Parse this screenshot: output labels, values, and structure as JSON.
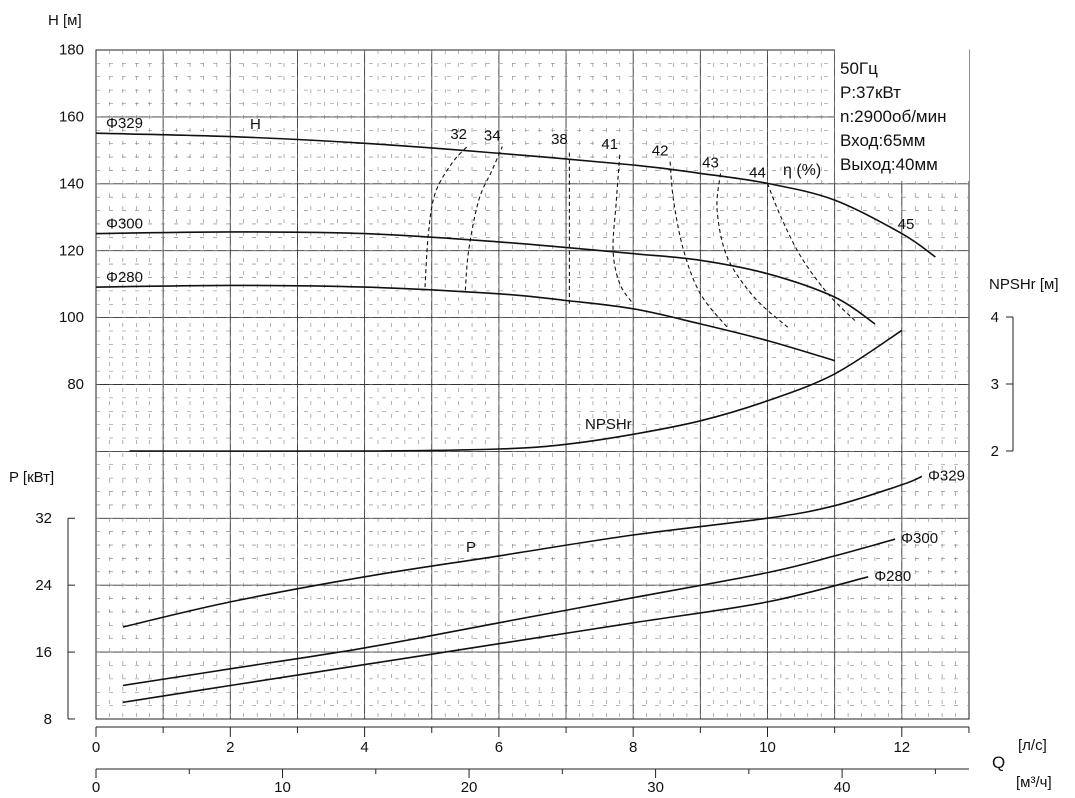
{
  "chart_data": {
    "type": "line",
    "info": [
      "50Гц",
      "P:37кВт",
      "n:2900об/мин",
      "Вход:65мм",
      "Выход:40мм"
    ],
    "head_axis": {
      "label": "H [м]",
      "ticks": [
        80,
        100,
        120,
        140,
        160,
        180
      ],
      "range": [
        60,
        180
      ]
    },
    "npsh_axis": {
      "label": "NPSHr [м]",
      "ticks": [
        2,
        3,
        4
      ],
      "range": [
        2,
        4
      ]
    },
    "power_axis": {
      "label": "P [кВт]",
      "ticks": [
        8,
        16,
        24,
        32
      ],
      "range": [
        8,
        40
      ]
    },
    "flow_axis_ls": {
      "unit": "[л/с]",
      "ticks": [
        0,
        2,
        4,
        6,
        8,
        10,
        12
      ],
      "range": [
        0,
        13
      ]
    },
    "flow_axis_m3h": {
      "unit": "[м³/ч]",
      "ticks": [
        0,
        10,
        20,
        30,
        40
      ],
      "range": [
        0,
        46.8
      ]
    },
    "flow_symbol": "Q",
    "head_curve_tag": "H",
    "npsh_curve_tag": "NPSHr",
    "power_curve_tag": "P",
    "efficiency_tag": "η (%)",
    "head_series": [
      {
        "name": "Φ329",
        "x": [
          0,
          2,
          4,
          6,
          8,
          9,
          10,
          11,
          12,
          12.5
        ],
        "y": [
          155,
          154,
          152,
          149,
          145.5,
          143,
          140,
          135,
          125,
          118
        ]
      },
      {
        "name": "Φ300",
        "x": [
          0,
          2,
          4,
          6,
          8,
          9,
          10,
          11,
          11.6
        ],
        "y": [
          125,
          125.5,
          125,
          122.5,
          119,
          117,
          113,
          106,
          98
        ]
      },
      {
        "name": "Φ280",
        "x": [
          0,
          2,
          4,
          6,
          7,
          8,
          9,
          10,
          11
        ],
        "y": [
          109,
          109.5,
          109,
          107,
          105,
          102.5,
          98,
          93,
          87
        ]
      }
    ],
    "npsh_series": {
      "name": "NPSHr",
      "x": [
        0.5,
        4,
        6,
        7,
        8,
        9,
        10,
        11,
        12
      ],
      "y": [
        2,
        2,
        2.03,
        2.1,
        2.25,
        2.45,
        2.75,
        3.15,
        3.8
      ]
    },
    "power_series": [
      {
        "name": "Φ329",
        "x": [
          0.4,
          2,
          4,
          6,
          8,
          10,
          11,
          12,
          12.3
        ],
        "y": [
          19,
          22,
          25,
          27.5,
          30,
          32,
          33.5,
          36,
          37
        ]
      },
      {
        "name": "Φ300",
        "x": [
          0.4,
          2,
          4,
          6,
          8,
          10,
          11,
          11.9
        ],
        "y": [
          12,
          14,
          16.5,
          19.5,
          22.5,
          25.5,
          27.5,
          29.5
        ]
      },
      {
        "name": "Φ280",
        "x": [
          0.4,
          2,
          4,
          6,
          8,
          10,
          11.5
        ],
        "y": [
          10,
          12,
          14.5,
          17,
          19.5,
          22,
          25
        ]
      }
    ],
    "efficiency_isolines": [
      {
        "label": "32",
        "x": [
          4.9,
          4.95,
          5.05,
          5.3,
          5.55
        ],
        "y": [
          109,
          125,
          137,
          146,
          151.5
        ]
      },
      {
        "label": "34",
        "x": [
          5.5,
          5.55,
          5.7,
          5.9,
          6.05
        ],
        "y": [
          108,
          120,
          135,
          144,
          151
        ]
      },
      {
        "label": "38",
        "x": [
          7.05,
          7.05,
          7.05,
          7.05
        ],
        "y": [
          104,
          120,
          135,
          150
        ]
      },
      {
        "label": "41",
        "x": [
          7.8,
          7.75,
          7.7,
          7.8,
          8.0
        ],
        "y": [
          148.5,
          135,
          120,
          110,
          104
        ]
      },
      {
        "label": "42",
        "x": [
          8.55,
          8.6,
          8.75,
          9.0,
          9.4
        ],
        "y": [
          146.5,
          135,
          120,
          107,
          97
        ]
      },
      {
        "label": "43",
        "x": [
          9.3,
          9.25,
          9.4,
          9.8,
          10.3
        ],
        "y": [
          143,
          132,
          118,
          106,
          97
        ]
      },
      {
        "label": "44",
        "x": [
          10.0,
          10.2,
          10.5,
          10.9,
          11.3
        ],
        "y": [
          140,
          130,
          118,
          107,
          99
        ]
      }
    ],
    "efficiency_end_label": "45"
  }
}
